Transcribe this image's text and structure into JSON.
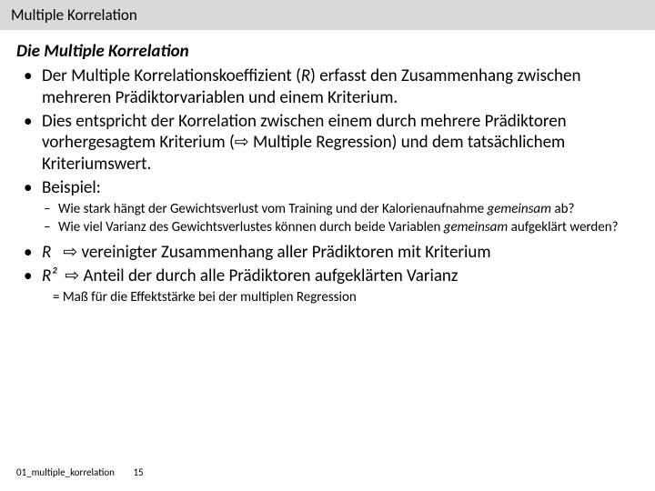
{
  "header": {
    "title": "Multiple Korrelation"
  },
  "heading": "Die Multiple Korrelation",
  "bullets": {
    "b1": {
      "pre": "Der Multiple Korrelationskoeffizient (",
      "r": "R",
      "post": ") erfasst den Zusammenhang zwischen mehreren Prädiktorvariablen und einem Kriterium."
    },
    "b2": "Dies entspricht der Korrelation zwischen einem durch mehrere Prädiktoren vorhergesagtem Kriterium (⇨ Multiple Regression) und dem tatsächlichem Kriteriumswert.",
    "b3": "Beispiel:",
    "sub1": {
      "pre": "Wie stark hängt der Gewichtsverlust vom Training und der Kalorienaufnahme ",
      "em": "gemeinsam",
      "post": " ab?"
    },
    "sub2": {
      "pre": "Wie viel Varianz des Gewichtsverlustes können durch beide Variablen ",
      "em": "gemeinsam",
      "post": " aufgeklärt werden?"
    },
    "b4": {
      "sym": "R",
      "arrow": "⇨",
      "text": "vereinigter Zusammenhang aller Prädiktoren mit Kriterium"
    },
    "b5": {
      "sym": "R²",
      "arrow": "⇨",
      "text": "Anteil der durch alle Prädiktoren aufgeklärten Varianz"
    }
  },
  "eq": "= Maß für die Effektstärke bei der multiplen Regression",
  "footer": {
    "file": "01_multiple_korrelation",
    "page": "15"
  },
  "colors": {
    "header_bg": "#d9d9d9",
    "text": "#000000",
    "bg": "#ffffff"
  }
}
